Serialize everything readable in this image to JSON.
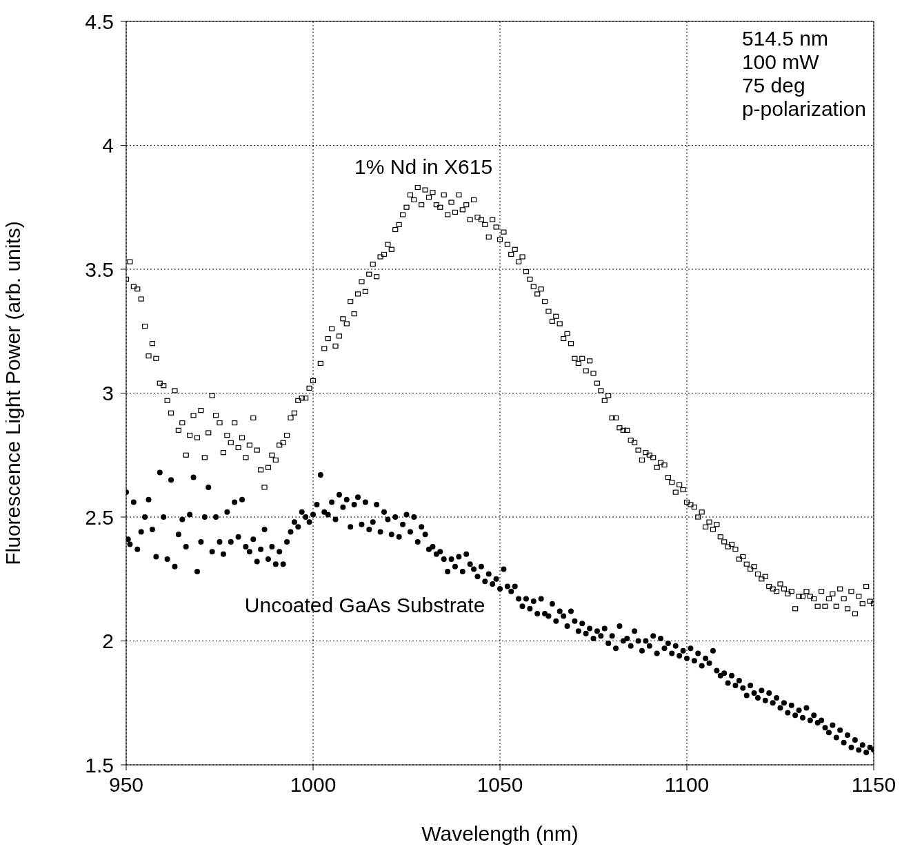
{
  "chart_data": {
    "type": "scatter",
    "xlabel": "Wavelength (nm)",
    "ylabel": "Fluorescence Light Power (arb. units)",
    "annotations": [
      "514.5 nm",
      "100 mW",
      "75 deg",
      "p-polarization"
    ],
    "xlim": [
      950,
      1150
    ],
    "xticks": [
      950,
      1000,
      1050,
      1100,
      1150
    ],
    "ylim": [
      1.5,
      4.5
    ],
    "yticks": [
      1.5,
      2,
      2.5,
      3,
      3.5,
      4,
      4.5
    ],
    "grid": true,
    "series": [
      {
        "name": "1% Nd in X615",
        "color": "#000000",
        "marker": "square",
        "x": [
          950,
          951,
          952,
          953,
          954,
          955,
          956,
          957,
          958,
          959,
          960,
          961,
          962,
          963,
          964,
          965,
          966,
          967,
          968,
          969,
          970,
          971,
          972,
          973,
          974,
          975,
          976,
          977,
          978,
          979,
          980,
          981,
          982,
          983,
          984,
          985,
          986,
          987,
          988,
          989,
          990,
          991,
          992,
          993,
          994,
          995,
          996,
          997,
          998,
          999,
          1000,
          1002,
          1003,
          1004,
          1005,
          1006,
          1007,
          1008,
          1009,
          1010,
          1011,
          1012,
          1013,
          1014,
          1015,
          1016,
          1017,
          1018,
          1019,
          1020,
          1021,
          1022,
          1023,
          1024,
          1025,
          1026,
          1027,
          1028,
          1029,
          1030,
          1031,
          1032,
          1033,
          1034,
          1035,
          1036,
          1037,
          1038,
          1039,
          1040,
          1041,
          1042,
          1043,
          1044,
          1045,
          1046,
          1047,
          1048,
          1049,
          1050,
          1051,
          1052,
          1053,
          1054,
          1055,
          1056,
          1057,
          1058,
          1059,
          1060,
          1061,
          1062,
          1063,
          1064,
          1065,
          1066,
          1067,
          1068,
          1069,
          1070,
          1071,
          1072,
          1073,
          1074,
          1075,
          1076,
          1077,
          1078,
          1079,
          1080,
          1081,
          1082,
          1083,
          1084,
          1085,
          1086,
          1087,
          1088,
          1089,
          1090,
          1091,
          1092,
          1093,
          1094,
          1095,
          1096,
          1097,
          1098,
          1099,
          1100,
          1101,
          1102,
          1103,
          1104,
          1105,
          1106,
          1107,
          1108,
          1109,
          1110,
          1111,
          1112,
          1113,
          1114,
          1115,
          1116,
          1117,
          1118,
          1119,
          1120,
          1121,
          1122,
          1123,
          1124,
          1125,
          1126,
          1127,
          1128,
          1129,
          1130,
          1131,
          1132,
          1133,
          1134,
          1135,
          1136,
          1137,
          1138,
          1139,
          1140,
          1141,
          1142,
          1143,
          1144,
          1145,
          1146,
          1147,
          1148,
          1149,
          1150
        ],
        "values": [
          3.46,
          3.53,
          3.43,
          3.42,
          3.38,
          3.27,
          3.15,
          3.2,
          3.14,
          3.04,
          3.03,
          2.97,
          2.92,
          3.01,
          2.85,
          2.88,
          2.75,
          2.83,
          2.91,
          2.82,
          2.93,
          2.74,
          2.84,
          2.99,
          2.91,
          2.88,
          2.76,
          2.83,
          2.8,
          2.88,
          2.78,
          2.82,
          2.74,
          2.79,
          2.9,
          2.77,
          2.69,
          2.62,
          2.7,
          2.75,
          2.73,
          2.79,
          2.8,
          2.83,
          2.9,
          2.92,
          2.97,
          2.98,
          2.98,
          3.02,
          3.05,
          3.12,
          3.18,
          3.22,
          3.26,
          3.19,
          3.23,
          3.3,
          3.28,
          3.37,
          3.32,
          3.4,
          3.45,
          3.41,
          3.48,
          3.52,
          3.47,
          3.55,
          3.56,
          3.6,
          3.58,
          3.66,
          3.68,
          3.72,
          3.75,
          3.8,
          3.78,
          3.83,
          3.76,
          3.82,
          3.79,
          3.81,
          3.76,
          3.75,
          3.8,
          3.72,
          3.77,
          3.73,
          3.8,
          3.74,
          3.76,
          3.7,
          3.78,
          3.71,
          3.7,
          3.68,
          3.63,
          3.7,
          3.67,
          3.62,
          3.65,
          3.6,
          3.56,
          3.58,
          3.53,
          3.55,
          3.49,
          3.46,
          3.43,
          3.4,
          3.42,
          3.37,
          3.33,
          3.29,
          3.31,
          3.28,
          3.22,
          3.24,
          3.2,
          3.14,
          3.12,
          3.14,
          3.09,
          3.13,
          3.08,
          3.04,
          3.01,
          2.97,
          2.99,
          2.9,
          2.9,
          2.86,
          2.85,
          2.85,
          2.81,
          2.8,
          2.77,
          2.73,
          2.76,
          2.75,
          2.74,
          2.7,
          2.72,
          2.71,
          2.66,
          2.64,
          2.6,
          2.63,
          2.61,
          2.56,
          2.55,
          2.54,
          2.5,
          2.52,
          2.46,
          2.48,
          2.45,
          2.47,
          2.42,
          2.4,
          2.38,
          2.39,
          2.37,
          2.33,
          2.34,
          2.31,
          2.29,
          2.3,
          2.27,
          2.25,
          2.26,
          2.22,
          2.21,
          2.2,
          2.23,
          2.21,
          2.19,
          2.2,
          2.13,
          2.18,
          2.18,
          2.2,
          2.18,
          2.17,
          2.14,
          2.2,
          2.14,
          2.17,
          2.19,
          2.14,
          2.21,
          2.17,
          2.13,
          2.2,
          2.11,
          2.18,
          2.15,
          2.22,
          2.16,
          2.15
        ]
      },
      {
        "name": "Uncoated GaAs Substrate",
        "color": "#000000",
        "marker": "circle",
        "x": [
          950,
          950.5,
          951,
          952,
          953,
          954,
          955,
          956,
          957,
          958,
          959,
          960,
          961,
          962,
          963,
          964,
          965,
          966,
          967,
          968,
          969,
          970,
          971,
          972,
          973,
          974,
          975,
          976,
          977,
          978,
          979,
          980,
          981,
          982,
          983,
          984,
          985,
          986,
          987,
          988,
          989,
          990,
          991,
          992,
          993,
          994,
          995,
          996,
          997,
          998,
          999,
          1000,
          1001,
          1002,
          1003,
          1004,
          1005,
          1006,
          1007,
          1008,
          1009,
          1010,
          1011,
          1012,
          1013,
          1014,
          1015,
          1016,
          1017,
          1018,
          1019,
          1020,
          1021,
          1022,
          1023,
          1024,
          1025,
          1026,
          1027,
          1028,
          1029,
          1030,
          1031,
          1032,
          1033,
          1034,
          1035,
          1036,
          1037,
          1038,
          1039,
          1040,
          1041,
          1042,
          1043,
          1044,
          1045,
          1046,
          1047,
          1048,
          1049,
          1050,
          1051,
          1052,
          1053,
          1054,
          1055,
          1056,
          1057,
          1058,
          1059,
          1060,
          1061,
          1062,
          1063,
          1064,
          1065,
          1066,
          1067,
          1068,
          1069,
          1070,
          1071,
          1072,
          1073,
          1074,
          1075,
          1076,
          1077,
          1078,
          1079,
          1080,
          1081,
          1082,
          1083,
          1084,
          1085,
          1086,
          1087,
          1088,
          1089,
          1090,
          1091,
          1092,
          1093,
          1094,
          1095,
          1096,
          1097,
          1098,
          1099,
          1100,
          1101,
          1102,
          1103,
          1104,
          1105,
          1106,
          1107,
          1108,
          1109,
          1110,
          1111,
          1112,
          1113,
          1114,
          1115,
          1116,
          1117,
          1118,
          1119,
          1120,
          1121,
          1122,
          1123,
          1124,
          1125,
          1126,
          1127,
          1128,
          1129,
          1130,
          1131,
          1132,
          1133,
          1134,
          1135,
          1136,
          1137,
          1138,
          1139,
          1140,
          1141,
          1142,
          1143,
          1144,
          1145,
          1146,
          1147,
          1148,
          1149,
          1150
        ],
        "values": [
          2.6,
          2.41,
          2.39,
          2.56,
          2.37,
          2.44,
          2.5,
          2.57,
          2.45,
          2.34,
          2.68,
          2.5,
          2.33,
          2.65,
          2.3,
          2.43,
          2.49,
          2.38,
          2.51,
          2.66,
          2.28,
          2.4,
          2.5,
          2.62,
          2.36,
          2.5,
          2.4,
          2.35,
          2.52,
          2.4,
          2.56,
          2.42,
          2.57,
          2.38,
          2.36,
          2.41,
          2.32,
          2.37,
          2.45,
          2.33,
          2.38,
          2.31,
          2.36,
          2.31,
          2.4,
          2.44,
          2.48,
          2.46,
          2.52,
          2.5,
          2.48,
          2.51,
          2.55,
          2.67,
          2.52,
          2.51,
          2.56,
          2.49,
          2.59,
          2.54,
          2.57,
          2.46,
          2.55,
          2.58,
          2.47,
          2.56,
          2.45,
          2.48,
          2.55,
          2.44,
          2.52,
          2.49,
          2.43,
          2.5,
          2.42,
          2.47,
          2.51,
          2.44,
          2.5,
          2.4,
          2.46,
          2.43,
          2.37,
          2.38,
          2.35,
          2.36,
          2.33,
          2.28,
          2.33,
          2.3,
          2.34,
          2.28,
          2.35,
          2.31,
          2.29,
          2.26,
          2.3,
          2.24,
          2.27,
          2.23,
          2.25,
          2.21,
          2.29,
          2.22,
          2.2,
          2.22,
          2.17,
          2.14,
          2.17,
          2.13,
          2.16,
          2.11,
          2.17,
          2.11,
          2.1,
          2.15,
          2.08,
          2.12,
          2.1,
          2.06,
          2.12,
          2.08,
          2.04,
          2.07,
          2.03,
          2.05,
          2.01,
          2.04,
          2.02,
          2.05,
          1.99,
          2.02,
          1.97,
          2.06,
          2,
          2.01,
          1.98,
          2.04,
          2,
          1.96,
          2,
          1.98,
          2.02,
          1.95,
          2.01,
          1.97,
          1.99,
          1.95,
          1.98,
          1.94,
          1.96,
          1.93,
          1.97,
          1.92,
          1.95,
          1.9,
          1.93,
          1.91,
          1.96,
          1.88,
          1.86,
          1.87,
          1.83,
          1.86,
          1.82,
          1.84,
          1.81,
          1.78,
          1.82,
          1.79,
          1.77,
          1.8,
          1.76,
          1.79,
          1.75,
          1.77,
          1.73,
          1.75,
          1.71,
          1.74,
          1.7,
          1.72,
          1.69,
          1.73,
          1.68,
          1.7,
          1.67,
          1.68,
          1.65,
          1.63,
          1.66,
          1.61,
          1.64,
          1.59,
          1.62,
          1.57,
          1.6,
          1.56,
          1.58,
          1.55,
          1.57,
          1.56
        ]
      }
    ]
  }
}
